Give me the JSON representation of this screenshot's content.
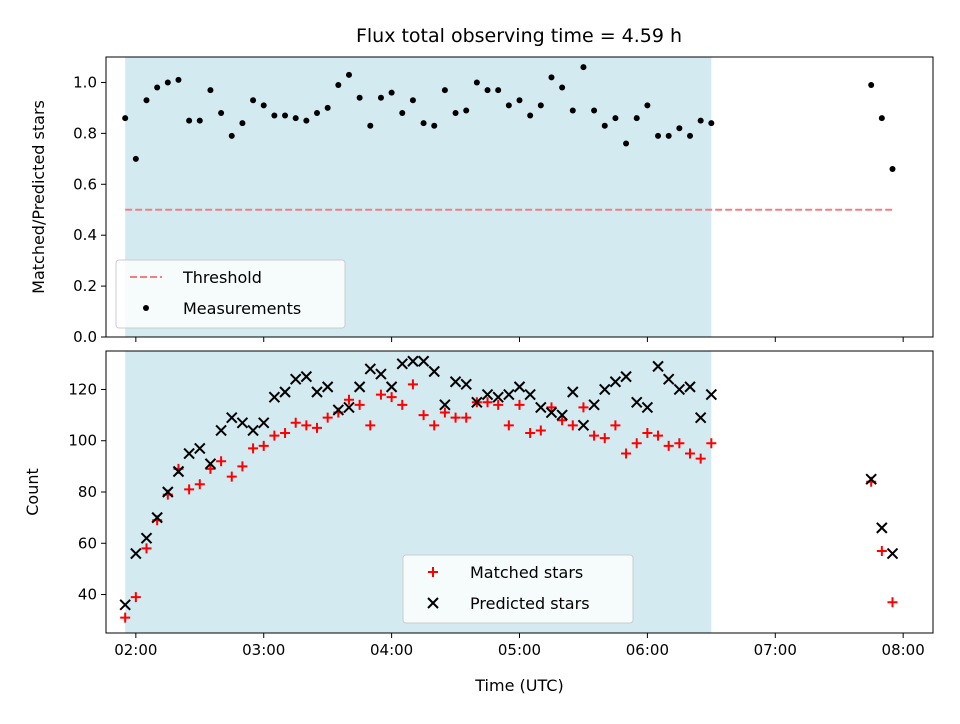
{
  "chart_data": [
    {
      "type": "scatter",
      "title": "Flux total observing time = 4.59 h",
      "ylabel": "Matched/Predicted stars",
      "xlabel": "",
      "xlim": [
        "01:46",
        "08:14"
      ],
      "ylim": [
        0,
        1.1
      ],
      "yticks": [
        0.0,
        0.2,
        0.4,
        0.6,
        0.8,
        1.0
      ],
      "ytick_labels": [
        "0.0",
        "0.2",
        "0.4",
        "0.6",
        "0.8",
        "1.0"
      ],
      "xticks": [
        "02:00",
        "03:00",
        "04:00",
        "05:00",
        "06:00",
        "07:00",
        "08:00"
      ],
      "shaded_interval": {
        "start": "01:55",
        "end": "06:30",
        "color": "#d3eaf1"
      },
      "threshold": {
        "value": 0.5,
        "x_start": "01:55",
        "x_end": "07:55",
        "color": "#f08080"
      },
      "legend": {
        "location": "lower-left",
        "entries": [
          "Threshold",
          "Measurements"
        ]
      },
      "series": [
        {
          "name": "Measurements",
          "marker": "dot",
          "color": "#000000",
          "points": [
            [
              "01:55",
              0.86
            ],
            [
              "02:00",
              0.7
            ],
            [
              "02:05",
              0.93
            ],
            [
              "02:10",
              0.98
            ],
            [
              "02:15",
              1.0
            ],
            [
              "02:20",
              1.01
            ],
            [
              "02:25",
              0.85
            ],
            [
              "02:30",
              0.85
            ],
            [
              "02:35",
              0.97
            ],
            [
              "02:40",
              0.88
            ],
            [
              "02:45",
              0.79
            ],
            [
              "02:50",
              0.84
            ],
            [
              "02:55",
              0.93
            ],
            [
              "03:00",
              0.91
            ],
            [
              "03:05",
              0.87
            ],
            [
              "03:10",
              0.87
            ],
            [
              "03:15",
              0.86
            ],
            [
              "03:20",
              0.85
            ],
            [
              "03:25",
              0.88
            ],
            [
              "03:30",
              0.9
            ],
            [
              "03:35",
              0.99
            ],
            [
              "03:40",
              1.03
            ],
            [
              "03:45",
              0.94
            ],
            [
              "03:50",
              0.83
            ],
            [
              "03:55",
              0.94
            ],
            [
              "04:00",
              0.96
            ],
            [
              "04:05",
              0.88
            ],
            [
              "04:10",
              0.93
            ],
            [
              "04:15",
              0.84
            ],
            [
              "04:20",
              0.83
            ],
            [
              "04:25",
              0.97
            ],
            [
              "04:30",
              0.88
            ],
            [
              "04:35",
              0.89
            ],
            [
              "04:40",
              1.0
            ],
            [
              "04:45",
              0.97
            ],
            [
              "04:50",
              0.97
            ],
            [
              "04:55",
              0.91
            ],
            [
              "05:00",
              0.93
            ],
            [
              "05:05",
              0.87
            ],
            [
              "05:10",
              0.91
            ],
            [
              "05:15",
              1.02
            ],
            [
              "05:20",
              0.98
            ],
            [
              "05:25",
              0.89
            ],
            [
              "05:30",
              1.06
            ],
            [
              "05:35",
              0.89
            ],
            [
              "05:40",
              0.83
            ],
            [
              "05:45",
              0.86
            ],
            [
              "05:50",
              0.76
            ],
            [
              "05:55",
              0.86
            ],
            [
              "06:00",
              0.91
            ],
            [
              "06:05",
              0.79
            ],
            [
              "06:10",
              0.79
            ],
            [
              "06:15",
              0.82
            ],
            [
              "06:20",
              0.79
            ],
            [
              "06:25",
              0.85
            ],
            [
              "06:30",
              0.84
            ],
            [
              "07:45",
              0.99
            ],
            [
              "07:50",
              0.86
            ],
            [
              "07:55",
              0.66
            ]
          ]
        }
      ]
    },
    {
      "type": "scatter",
      "title": "",
      "ylabel": "Count",
      "xlabel": "Time (UTC)",
      "xlim": [
        "01:46",
        "08:14"
      ],
      "ylim": [
        25,
        135
      ],
      "yticks": [
        40,
        60,
        80,
        100,
        120
      ],
      "ytick_labels": [
        "40",
        "60",
        "80",
        "100",
        "120"
      ],
      "xticks": [
        "02:00",
        "03:00",
        "04:00",
        "05:00",
        "06:00",
        "07:00",
        "08:00"
      ],
      "shaded_interval": {
        "start": "01:55",
        "end": "06:30",
        "color": "#d3eaf1"
      },
      "legend": {
        "location": "lower-center",
        "entries": [
          "Matched stars",
          "Predicted stars"
        ]
      },
      "series": [
        {
          "name": "Matched stars",
          "marker": "plus",
          "color": "#ff0000",
          "points": [
            [
              "01:55",
              31
            ],
            [
              "02:00",
              39
            ],
            [
              "02:05",
              58
            ],
            [
              "02:10",
              69
            ],
            [
              "02:15",
              79
            ],
            [
              "02:20",
              89
            ],
            [
              "02:25",
              81
            ],
            [
              "02:30",
              83
            ],
            [
              "02:35",
              89
            ],
            [
              "02:40",
              92
            ],
            [
              "02:45",
              86
            ],
            [
              "02:50",
              90
            ],
            [
              "02:55",
              97
            ],
            [
              "03:00",
              98
            ],
            [
              "03:05",
              102
            ],
            [
              "03:10",
              103
            ],
            [
              "03:15",
              107
            ],
            [
              "03:20",
              106
            ],
            [
              "03:25",
              105
            ],
            [
              "03:30",
              109
            ],
            [
              "03:35",
              111
            ],
            [
              "03:40",
              116
            ],
            [
              "03:45",
              114
            ],
            [
              "03:50",
              106
            ],
            [
              "03:55",
              118
            ],
            [
              "04:00",
              117
            ],
            [
              "04:05",
              114
            ],
            [
              "04:10",
              122
            ],
            [
              "04:15",
              110
            ],
            [
              "04:20",
              106
            ],
            [
              "04:25",
              111
            ],
            [
              "04:30",
              109
            ],
            [
              "04:35",
              109
            ],
            [
              "04:40",
              115
            ],
            [
              "04:45",
              115
            ],
            [
              "04:50",
              114
            ],
            [
              "04:55",
              106
            ],
            [
              "05:00",
              114
            ],
            [
              "05:05",
              103
            ],
            [
              "05:10",
              104
            ],
            [
              "05:15",
              113
            ],
            [
              "05:20",
              108
            ],
            [
              "05:25",
              106
            ],
            [
              "05:30",
              113
            ],
            [
              "05:35",
              102
            ],
            [
              "05:40",
              101
            ],
            [
              "05:45",
              106
            ],
            [
              "05:50",
              95
            ],
            [
              "05:55",
              99
            ],
            [
              "06:00",
              103
            ],
            [
              "06:05",
              102
            ],
            [
              "06:10",
              98
            ],
            [
              "06:15",
              99
            ],
            [
              "06:20",
              95
            ],
            [
              "06:25",
              93
            ],
            [
              "06:30",
              99
            ],
            [
              "07:45",
              84
            ],
            [
              "07:50",
              57
            ],
            [
              "07:55",
              37
            ]
          ]
        },
        {
          "name": "Predicted stars",
          "marker": "x",
          "color": "#000000",
          "points": [
            [
              "01:55",
              36
            ],
            [
              "02:00",
              56
            ],
            [
              "02:05",
              62
            ],
            [
              "02:10",
              70
            ],
            [
              "02:15",
              80
            ],
            [
              "02:20",
              88
            ],
            [
              "02:25",
              95
            ],
            [
              "02:30",
              97
            ],
            [
              "02:35",
              91
            ],
            [
              "02:40",
              104
            ],
            [
              "02:45",
              109
            ],
            [
              "02:50",
              107
            ],
            [
              "02:55",
              104
            ],
            [
              "03:00",
              107
            ],
            [
              "03:05",
              117
            ],
            [
              "03:10",
              119
            ],
            [
              "03:15",
              124
            ],
            [
              "03:20",
              125
            ],
            [
              "03:25",
              119
            ],
            [
              "03:30",
              121
            ],
            [
              "03:35",
              112
            ],
            [
              "03:40",
              113
            ],
            [
              "03:45",
              121
            ],
            [
              "03:50",
              128
            ],
            [
              "03:55",
              126
            ],
            [
              "04:00",
              121
            ],
            [
              "04:05",
              130
            ],
            [
              "04:10",
              131
            ],
            [
              "04:15",
              131
            ],
            [
              "04:20",
              127
            ],
            [
              "04:25",
              114
            ],
            [
              "04:30",
              123
            ],
            [
              "04:35",
              122
            ],
            [
              "04:40",
              115
            ],
            [
              "04:45",
              118
            ],
            [
              "04:50",
              117
            ],
            [
              "04:55",
              118
            ],
            [
              "05:00",
              121
            ],
            [
              "05:05",
              118
            ],
            [
              "05:10",
              113
            ],
            [
              "05:15",
              111
            ],
            [
              "05:20",
              110
            ],
            [
              "05:25",
              119
            ],
            [
              "05:30",
              106
            ],
            [
              "05:35",
              114
            ],
            [
              "05:40",
              120
            ],
            [
              "05:45",
              123
            ],
            [
              "05:50",
              125
            ],
            [
              "05:55",
              115
            ],
            [
              "06:00",
              113
            ],
            [
              "06:05",
              129
            ],
            [
              "06:10",
              124
            ],
            [
              "06:15",
              120
            ],
            [
              "06:20",
              121
            ],
            [
              "06:25",
              109
            ],
            [
              "06:30",
              118
            ],
            [
              "07:45",
              85
            ],
            [
              "07:50",
              66
            ],
            [
              "07:55",
              56
            ]
          ]
        }
      ]
    }
  ]
}
